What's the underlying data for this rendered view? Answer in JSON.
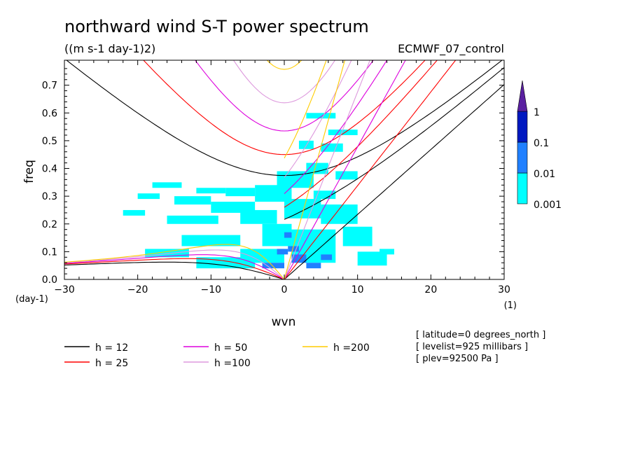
{
  "chart_data": {
    "type": "heatmap",
    "title": "northward wind S-T power spectrum",
    "subtitle": "((m s-1 day-1)2)",
    "dataset": "ECMWF_07_control",
    "xlabel": "wvn",
    "ylabel": "freq",
    "xunit": "(1)",
    "yunit": "(day-1)",
    "xlim": [
      -30,
      30
    ],
    "ylim": [
      0,
      0.79
    ],
    "xticks": [
      "-30",
      "-20",
      "-10",
      "0",
      "10",
      "20",
      "30"
    ],
    "yticks": [
      "0.0",
      "0.1",
      "0.2",
      "0.3",
      "0.4",
      "0.5",
      "0.6",
      "0.7"
    ],
    "colorbar": {
      "levels": [
        "0.001",
        "0.01",
        "0.1",
        "1"
      ],
      "colors": [
        "#00ffff",
        "#2080ff",
        "#0018c0",
        "#5a20a0"
      ]
    },
    "dispersion_curves": [
      {
        "label": "h = 12",
        "color": "#000000",
        "h": 12
      },
      {
        "label": "h = 25",
        "color": "#ff0000",
        "h": 25
      },
      {
        "label": "h = 50",
        "color": "#dd00dd",
        "h": 50
      },
      {
        "label": "h =100",
        "color": "#dd99dd",
        "h": 100
      },
      {
        "label": "h =200",
        "color": "#ffcc00",
        "h": 200
      }
    ],
    "info": [
      "[ latitude=0 degrees_north ]",
      "[ levelist=925 millibars ]",
      "[ plev=92500 Pa ]"
    ],
    "power_regions": [
      {
        "level": 0,
        "x": -20,
        "y": 0.29,
        "w": 3,
        "h": 0.02
      },
      {
        "level": 0,
        "x": -18,
        "y": 0.33,
        "w": 4,
        "h": 0.02
      },
      {
        "level": 0,
        "x": -15,
        "y": 0.27,
        "w": 5,
        "h": 0.03
      },
      {
        "level": 0,
        "x": -12,
        "y": 0.31,
        "w": 4,
        "h": 0.02
      },
      {
        "level": 0,
        "x": -10,
        "y": 0.24,
        "w": 6,
        "h": 0.04
      },
      {
        "level": 0,
        "x": -16,
        "y": 0.2,
        "w": 7,
        "h": 0.03
      },
      {
        "level": 0,
        "x": -22,
        "y": 0.23,
        "w": 3,
        "h": 0.02
      },
      {
        "level": 0,
        "x": -8,
        "y": 0.3,
        "w": 4,
        "h": 0.03
      },
      {
        "level": 0,
        "x": -6,
        "y": 0.2,
        "w": 5,
        "h": 0.05
      },
      {
        "level": 0,
        "x": -4,
        "y": 0.28,
        "w": 5,
        "h": 0.06
      },
      {
        "level": 0,
        "x": -3,
        "y": 0.12,
        "w": 4,
        "h": 0.08
      },
      {
        "level": 0,
        "x": -14,
        "y": 0.12,
        "w": 8,
        "h": 0.04
      },
      {
        "level": 0,
        "x": -19,
        "y": 0.08,
        "w": 6,
        "h": 0.03
      },
      {
        "level": 0,
        "x": -12,
        "y": 0.04,
        "w": 8,
        "h": 0.04
      },
      {
        "level": 0,
        "x": -6,
        "y": 0.06,
        "w": 6,
        "h": 0.05
      },
      {
        "level": 0,
        "x": -1,
        "y": 0.33,
        "w": 5,
        "h": 0.06
      },
      {
        "level": 0,
        "x": 0,
        "y": 0.22,
        "w": 5,
        "h": 0.07
      },
      {
        "level": 0,
        "x": 1,
        "y": 0.06,
        "w": 6,
        "h": 0.12
      },
      {
        "level": 0,
        "x": 3,
        "y": 0.38,
        "w": 3,
        "h": 0.04
      },
      {
        "level": 0,
        "x": 5,
        "y": 0.46,
        "w": 3,
        "h": 0.03
      },
      {
        "level": 0,
        "x": 5,
        "y": 0.2,
        "w": 5,
        "h": 0.07
      },
      {
        "level": 0,
        "x": 6,
        "y": 0.52,
        "w": 4,
        "h": 0.02
      },
      {
        "level": 0,
        "x": 7,
        "y": 0.36,
        "w": 3,
        "h": 0.03
      },
      {
        "level": 0,
        "x": 8,
        "y": 0.12,
        "w": 4,
        "h": 0.07
      },
      {
        "level": 0,
        "x": 10,
        "y": 0.05,
        "w": 4,
        "h": 0.05
      },
      {
        "level": 0,
        "x": 13,
        "y": 0.09,
        "w": 2,
        "h": 0.02
      },
      {
        "level": 0,
        "x": 3,
        "y": 0.58,
        "w": 4,
        "h": 0.02
      },
      {
        "level": 0,
        "x": 4,
        "y": 0.29,
        "w": 3,
        "h": 0.03
      },
      {
        "level": 0,
        "x": 2,
        "y": 0.47,
        "w": 2,
        "h": 0.03
      },
      {
        "level": 1,
        "x": -3,
        "y": 0.04,
        "w": 3,
        "h": 0.02
      },
      {
        "level": 1,
        "x": 1,
        "y": 0.06,
        "w": 2,
        "h": 0.03
      },
      {
        "level": 1,
        "x": 0.5,
        "y": 0.1,
        "w": 1.5,
        "h": 0.02
      },
      {
        "level": 1,
        "x": 3,
        "y": 0.04,
        "w": 2,
        "h": 0.02
      },
      {
        "level": 1,
        "x": -1,
        "y": 0.09,
        "w": 1.5,
        "h": 0.02
      },
      {
        "level": 1,
        "x": 5,
        "y": 0.07,
        "w": 1.5,
        "h": 0.02
      },
      {
        "level": 1,
        "x": 0,
        "y": 0.15,
        "w": 1,
        "h": 0.02
      }
    ]
  }
}
